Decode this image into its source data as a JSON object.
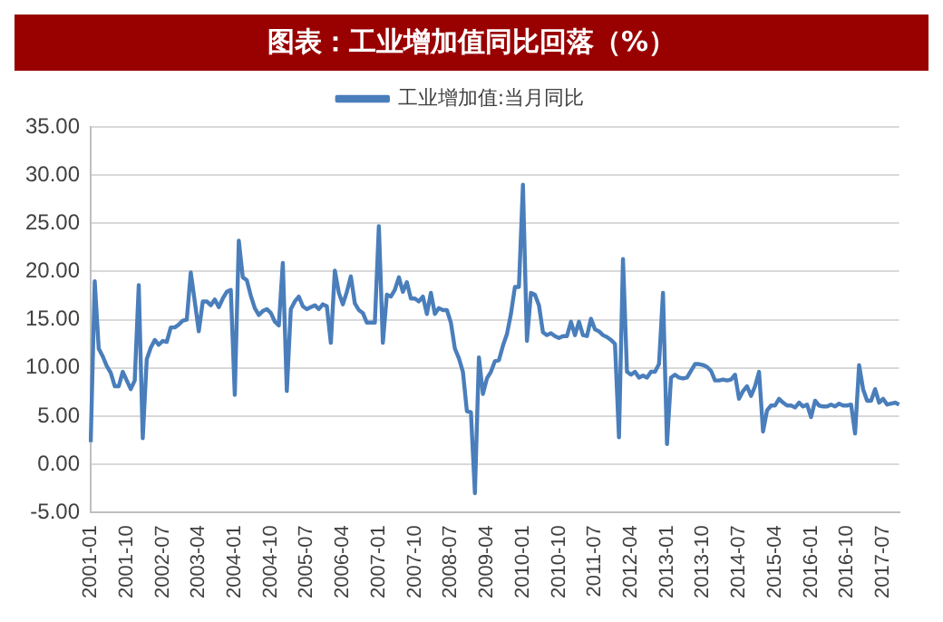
{
  "chart_data": {
    "type": "line",
    "title": "图表：工业增加值同比回落（%）",
    "categories": [
      "2001-01",
      null,
      null,
      null,
      null,
      null,
      null,
      null,
      null,
      "2001-10",
      null,
      null,
      null,
      null,
      null,
      null,
      null,
      null,
      "2002-07",
      null,
      null,
      null,
      null,
      null,
      null,
      null,
      null,
      "2003-04",
      null,
      null,
      null,
      null,
      null,
      null,
      null,
      null,
      "2004-01",
      null,
      null,
      null,
      null,
      null,
      null,
      null,
      null,
      "2004-10",
      null,
      null,
      null,
      null,
      null,
      null,
      null,
      null,
      "2005-07",
      null,
      null,
      null,
      null,
      null,
      null,
      null,
      null,
      "2006-04",
      null,
      null,
      null,
      null,
      null,
      null,
      null,
      null,
      "2007-01",
      null,
      null,
      null,
      null,
      null,
      null,
      null,
      null,
      "2007-10",
      null,
      null,
      null,
      null,
      null,
      null,
      null,
      null,
      "2008-07",
      null,
      null,
      null,
      null,
      null,
      null,
      null,
      null,
      "2009-04",
      null,
      null,
      null,
      null,
      null,
      null,
      null,
      null,
      "2010-01",
      null,
      null,
      null,
      null,
      null,
      null,
      null,
      null,
      "2010-10",
      null,
      null,
      null,
      null,
      null,
      null,
      null,
      null,
      "2011-07",
      null,
      null,
      null,
      null,
      null,
      null,
      null,
      null,
      "2012-04",
      null,
      null,
      null,
      null,
      null,
      null,
      null,
      null,
      "2013-01",
      null,
      null,
      null,
      null,
      null,
      null,
      null,
      null,
      "2013-10",
      null,
      null,
      null,
      null,
      null,
      null,
      null,
      null,
      "2014-07",
      null,
      null,
      null,
      null,
      null,
      null,
      null,
      null,
      "2015-04",
      null,
      null,
      null,
      null,
      null,
      null,
      null,
      null,
      "2016-01",
      null,
      null,
      null,
      null,
      null,
      null,
      null,
      null,
      "2016-10",
      null,
      null,
      null,
      null,
      null,
      null,
      null,
      null,
      "2017-07",
      null,
      null,
      null,
      null
    ],
    "series": [
      {
        "name": "工业增加值:当月同比",
        "color": "#4a7ebb",
        "values": [
          2.3,
          19.0,
          12.0,
          11.2,
          10.2,
          9.5,
          8.1,
          8.1,
          9.6,
          8.7,
          7.8,
          8.7,
          18.6,
          2.7,
          10.9,
          12.1,
          12.9,
          12.4,
          12.8,
          12.7,
          14.2,
          14.2,
          14.5,
          14.9,
          15.0,
          19.9,
          16.9,
          13.8,
          16.9,
          16.9,
          16.5,
          17.1,
          16.3,
          17.2,
          17.9,
          18.1,
          7.2,
          23.2,
          19.4,
          19.1,
          17.5,
          16.2,
          15.5,
          15.9,
          16.1,
          15.7,
          14.8,
          14.4,
          20.9,
          7.6,
          16.1,
          16.9,
          17.4,
          16.4,
          16.1,
          16.3,
          16.5,
          16.1,
          16.6,
          16.4,
          12.6,
          20.1,
          17.8,
          16.6,
          17.9,
          19.5,
          16.7,
          16.0,
          15.7,
          14.7,
          14.7,
          14.7,
          24.7,
          12.6,
          17.6,
          17.4,
          18.1,
          19.4,
          17.9,
          18.9,
          17.2,
          17.2,
          16.9,
          17.4,
          15.6,
          17.8,
          15.6,
          16.2,
          16.0,
          16.0,
          14.7,
          12.0,
          11.0,
          9.6,
          5.5,
          5.4,
          -3.0,
          11.1,
          7.3,
          8.9,
          9.6,
          10.7,
          10.8,
          12.3,
          13.5,
          15.6,
          18.4,
          18.4,
          29.0,
          12.8,
          17.8,
          17.6,
          16.5,
          13.7,
          13.4,
          13.6,
          13.3,
          13.1,
          13.3,
          13.3,
          14.8,
          13.4,
          14.8,
          13.4,
          13.3,
          15.1,
          14.0,
          13.8,
          13.4,
          13.2,
          12.9,
          12.5,
          2.8,
          21.3,
          9.6,
          9.3,
          9.6,
          9.0,
          9.2,
          9.0,
          9.6,
          9.6,
          10.4,
          17.8,
          2.1,
          9.0,
          9.3,
          9.0,
          8.9,
          9.0,
          9.7,
          10.4,
          10.4,
          10.3,
          10.1,
          9.7,
          8.7,
          8.7,
          8.8,
          8.7,
          8.8,
          9.3,
          6.8,
          7.6,
          8.1,
          7.1,
          8.1,
          9.6,
          3.4,
          5.6,
          6.1,
          6.1,
          6.8,
          6.4,
          6.1,
          6.1,
          5.9,
          6.4,
          6.0,
          6.2,
          4.9,
          6.6,
          6.1,
          6.0,
          6.0,
          6.2,
          6.0,
          6.3,
          6.1,
          6.1,
          6.2,
          3.2,
          10.3,
          7.8,
          6.6,
          6.6,
          7.8,
          6.4,
          6.8,
          6.2,
          6.3,
          6.4,
          6.2
        ]
      }
    ],
    "ylim": [
      -5,
      35
    ],
    "yticks": [
      {
        "value": -5,
        "label": "-5.00"
      },
      {
        "value": 0,
        "label": "0.00"
      },
      {
        "value": 5,
        "label": "5.00"
      },
      {
        "value": 10,
        "label": "10.00"
      },
      {
        "value": 15,
        "label": "15.00"
      },
      {
        "value": 20,
        "label": "20.00"
      },
      {
        "value": 25,
        "label": "25.00"
      },
      {
        "value": 30,
        "label": "30.00"
      },
      {
        "value": 35,
        "label": "35.00"
      }
    ],
    "grid": "y",
    "legend": "top",
    "marker": "none",
    "line_style": "solid"
  }
}
